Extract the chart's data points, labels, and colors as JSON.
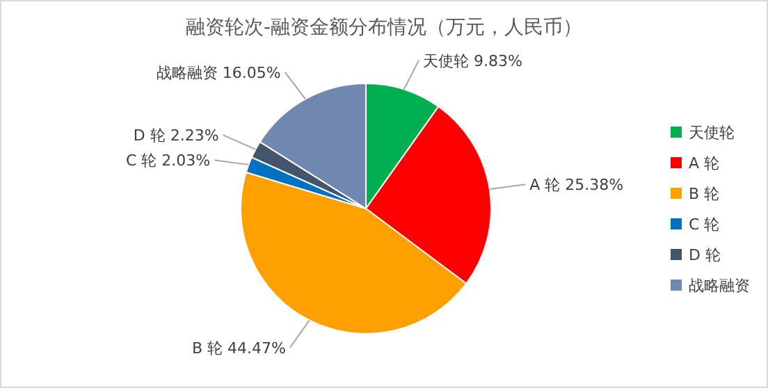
{
  "chart_data": {
    "type": "pie",
    "title": "融资轮次-融资金额分布情况（万元，人民币）",
    "categories": [
      "天使轮",
      "A 轮",
      "B 轮",
      "C 轮",
      "D 轮",
      "战略融资"
    ],
    "values": [
      9.83,
      25.38,
      44.47,
      2.03,
      2.23,
      16.05
    ],
    "value_labels": [
      "9.83%",
      "25.38%",
      "44.47%",
      "2.03%",
      "2.23%",
      "16.05%"
    ],
    "colors": [
      "#00b050",
      "#ff0000",
      "#ffa000",
      "#0070c0",
      "#44546a",
      "#7088b0"
    ],
    "legend": "right"
  }
}
